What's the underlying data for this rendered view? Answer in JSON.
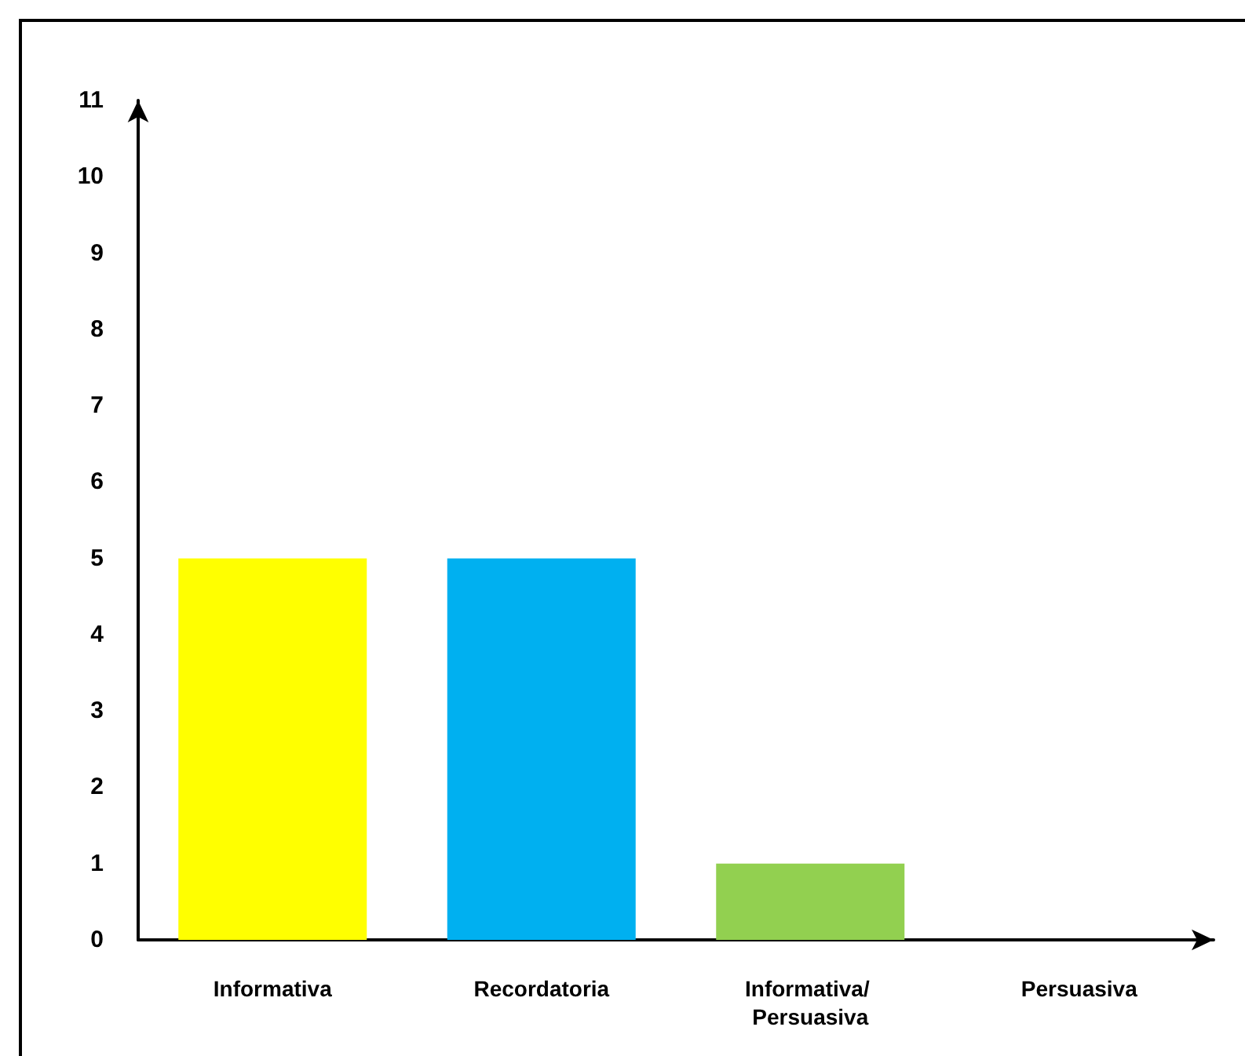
{
  "chart_data": {
    "type": "bar",
    "categories": [
      "Informativa",
      "Recordatoria",
      "Informativa/ Persuasiva",
      "Persuasiva"
    ],
    "values": [
      5,
      5,
      1,
      0
    ],
    "colors": [
      "#ffff00",
      "#00b0f0",
      "#92d050",
      "#ff0000"
    ],
    "ylim": [
      0,
      11
    ],
    "yticks": [
      0,
      1,
      2,
      3,
      4,
      5,
      6,
      7,
      8,
      9,
      10,
      11
    ],
    "grid": false
  }
}
